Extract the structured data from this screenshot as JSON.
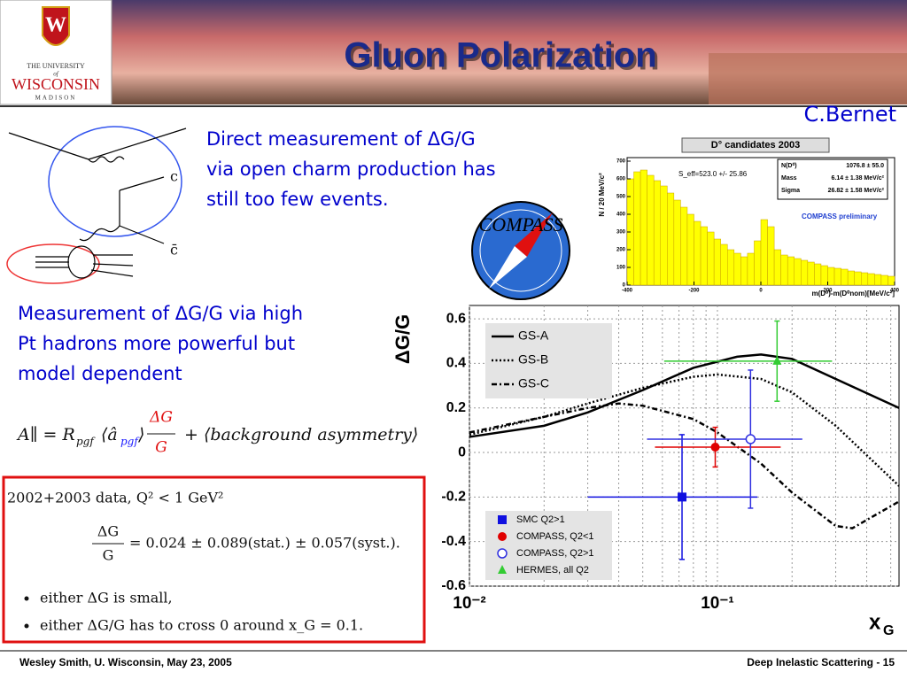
{
  "header": {
    "title": "Gluon Polarization",
    "logo": {
      "line1": "THE UNIVERSITY",
      "line2": "of",
      "line3": "WISCONSIN",
      "line4": "MADISON"
    },
    "credit": "C.Bernet"
  },
  "text_direct": [
    "Direct measurement of ΔG/G",
    "via open charm production has",
    "still too few events."
  ],
  "text_pt": [
    "Measurement of ΔG/G via high",
    "Pt hadrons more powerful but",
    "model dependent"
  ],
  "compass_logo": "COMPASS",
  "diagram": {
    "quark": "c",
    "antiquark": "c̄"
  },
  "formula": {
    "lhs": "A∥ = R",
    "lhs_sub": "pgf",
    "bracket": "⟨â",
    "bracket_sub": "pgf",
    "bracket_close": "⟩",
    "frac_num": "ΔG",
    "frac_den": "G",
    "rest": "+  ⟨background asymmetry⟩"
  },
  "result_box": {
    "heading": "2002+2003 data, Q² < 1 GeV²",
    "frac_num": "ΔG",
    "frac_den": "G",
    "equation": "= 0.024 ± 0.089(stat.) ± 0.057(syst.).",
    "bullets": [
      "either ΔG is small,",
      "either ΔG/G has to cross 0 around x_G = 0.1."
    ]
  },
  "footer": {
    "left": "Wesley Smith, U. Wisconsin, May 23, 2005",
    "right": "Deep Inelastic Scattering  -  15"
  },
  "chart_data": [
    {
      "type": "histogram",
      "title": "D° candidates 2003",
      "fit_label": "S_eff=523.0 +/- 25.86",
      "stats": [
        [
          "N(D⁰)",
          "1076.8 ± 55.0"
        ],
        [
          "Mass",
          "6.14 ± 1.38 MeV/c²"
        ],
        [
          "Sigma",
          "26.82 ± 1.58 MeV/c²"
        ]
      ],
      "annotation": "COMPASS preliminary",
      "x_label": "m(D⁰)-m(D⁰nom)[MeV/c²]",
      "y_label": "N / 20 MeV/c²",
      "bins": [
        -400,
        -380,
        -360,
        -340,
        -320,
        -300,
        -280,
        -260,
        -240,
        -220,
        -200,
        -180,
        -160,
        -140,
        -120,
        -100,
        -80,
        -60,
        -40,
        -20,
        0,
        20,
        40,
        60,
        80,
        100,
        120,
        140,
        160,
        180,
        200,
        220,
        240,
        260,
        280,
        300,
        320,
        340,
        360,
        380,
        400
      ],
      "counts": [
        600,
        640,
        650,
        620,
        590,
        560,
        520,
        480,
        440,
        400,
        360,
        330,
        300,
        260,
        230,
        200,
        180,
        160,
        180,
        250,
        370,
        330,
        200,
        170,
        160,
        150,
        140,
        130,
        120,
        110,
        100,
        95,
        90,
        80,
        75,
        70,
        65,
        60,
        55,
        50
      ],
      "color": "#ffff00",
      "xlim": [
        -400,
        400
      ],
      "xticks": [
        -400,
        -200,
        0,
        200,
        400
      ],
      "ylim": [
        0,
        720
      ],
      "yticks": [
        0,
        100,
        200,
        300,
        400,
        500,
        600,
        700
      ]
    },
    {
      "type": "line",
      "y_label": "ΔG/G",
      "x_label": {
        "text": "x",
        "sub": "G"
      },
      "xscale": "log",
      "xlim": [
        0.01,
        0.54
      ],
      "xticks": [
        {
          "value": 0.01,
          "label": "10⁻²"
        },
        {
          "value": 0.1,
          "label": "10⁻¹"
        }
      ],
      "xticks_minor": [
        0.02,
        0.03,
        0.04,
        0.05,
        0.06,
        0.07,
        0.08,
        0.09,
        0.2,
        0.3,
        0.4,
        0.5
      ],
      "ylim": [
        -0.6,
        0.66
      ],
      "yticks": [
        -0.6,
        -0.4,
        -0.2,
        0,
        0.2,
        0.4,
        0.6
      ],
      "grid": true,
      "series": [
        {
          "name": "GS-A",
          "color": "#000000",
          "dash": "solid",
          "x": [
            0.01,
            0.02,
            0.03,
            0.05,
            0.08,
            0.12,
            0.15,
            0.2,
            0.3,
            0.54
          ],
          "values": [
            0.07,
            0.12,
            0.18,
            0.28,
            0.38,
            0.43,
            0.44,
            0.42,
            0.33,
            0.2
          ]
        },
        {
          "name": "GS-B",
          "color": "#000000",
          "dash": "dotted",
          "x": [
            0.01,
            0.02,
            0.03,
            0.05,
            0.08,
            0.1,
            0.15,
            0.2,
            0.3,
            0.54
          ],
          "values": [
            0.08,
            0.16,
            0.22,
            0.29,
            0.34,
            0.35,
            0.33,
            0.27,
            0.12,
            -0.15
          ]
        },
        {
          "name": "GS-C",
          "color": "#000000",
          "dash": "dashdot",
          "x": [
            0.01,
            0.02,
            0.03,
            0.04,
            0.05,
            0.08,
            0.1,
            0.15,
            0.2,
            0.3,
            0.35,
            0.54
          ],
          "values": [
            0.09,
            0.16,
            0.2,
            0.22,
            0.21,
            0.15,
            0.09,
            -0.05,
            -0.18,
            -0.33,
            -0.34,
            -0.22
          ]
        }
      ],
      "points": [
        {
          "name": "SMC Q2>1",
          "color": "#1010e0",
          "marker": "square",
          "x": 0.072,
          "y": -0.2,
          "xlo": 0.03,
          "xhi": 0.145,
          "yerr": 0.28
        },
        {
          "name": "COMPASS, Q2<1",
          "color": "#e00000",
          "marker": "circle",
          "x": 0.098,
          "y": 0.024,
          "xlo": 0.056,
          "xhi": 0.18,
          "yerr": 0.089
        },
        {
          "name": "COMPASS, Q2>1",
          "color": "#3030e0",
          "marker": "circle-open",
          "x": 0.136,
          "y": 0.06,
          "xlo": 0.052,
          "xhi": 0.22,
          "yerr": 0.31
        },
        {
          "name": "HERMES, all Q2",
          "color": "#33cc33",
          "marker": "triangle",
          "x": 0.174,
          "y": 0.41,
          "xlo": 0.061,
          "xhi": 0.29,
          "yerr": 0.18
        }
      ]
    }
  ]
}
